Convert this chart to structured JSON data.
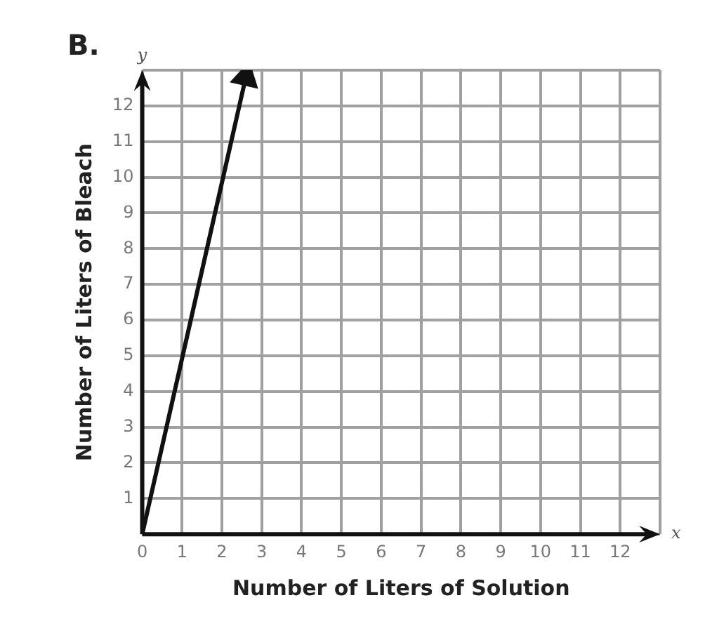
{
  "chart_data": {
    "type": "line",
    "title": "B.",
    "xlabel": "Number of Liters of Solution",
    "ylabel": "Number of Liters of Bleach",
    "annotations": [
      "x",
      "y"
    ],
    "x": [
      0,
      2.6
    ],
    "series": [
      {
        "color": "#111111",
        "values": [
          0,
          12.8
        ]
      }
    ],
    "xlim": [
      0,
      13
    ],
    "xticks": [
      0,
      1,
      2,
      3,
      4,
      5,
      6,
      7,
      8,
      9,
      10,
      11,
      12,
      {
        "value": 13,
        "label": null
      }
    ],
    "ylim": [
      0,
      13
    ],
    "yticks": [
      {
        "value": 0,
        "label": null
      },
      1,
      2,
      3,
      4,
      5,
      6,
      7,
      8,
      9,
      10,
      11,
      12,
      {
        "value": 13,
        "label": null
      }
    ],
    "grid": true,
    "legend": false,
    "line_style": "solid"
  }
}
